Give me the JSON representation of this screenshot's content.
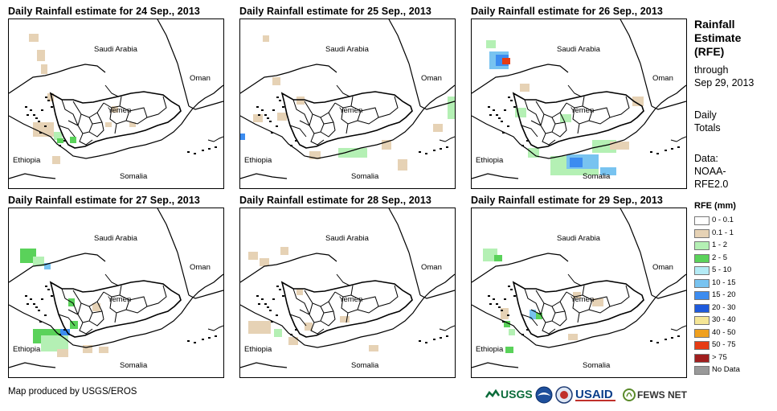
{
  "panels": [
    {
      "title": "Daily Rainfall estimate for 24 Sep., 2013"
    },
    {
      "title": "Daily Rainfall estimate for 25 Sep., 2013"
    },
    {
      "title": "Daily Rainfall estimate for 26 Sep., 2013"
    },
    {
      "title": "Daily Rainfall estimate for 27 Sep., 2013"
    },
    {
      "title": "Daily Rainfall estimate for 28 Sep., 2013"
    },
    {
      "title": "Daily Rainfall estimate for 29 Sep., 2013"
    }
  ],
  "places": {
    "saudi": "Saudi Arabia",
    "oman": "Oman",
    "yemen": "Yemen",
    "ethiopia": "Ethiopia",
    "somalia": "Somalia"
  },
  "sidebar": {
    "title_lines": [
      "Rainfall",
      "Estimate",
      "(RFE)"
    ],
    "through_label": "through",
    "through_date": "Sep 29, 2013",
    "period_lines": [
      "Daily",
      "Totals"
    ],
    "data_lines": [
      "Data:",
      "NOAA-",
      "RFE2.0"
    ]
  },
  "legend": {
    "title": "RFE (mm)",
    "items": [
      {
        "label": "0 - 0.1",
        "color": "#ffffff"
      },
      {
        "label": "0.1 - 1",
        "color": "#e6d2b5"
      },
      {
        "label": "1 - 2",
        "color": "#b4f0b4"
      },
      {
        "label": "2 - 5",
        "color": "#5ad25a"
      },
      {
        "label": "5 - 10",
        "color": "#b4ebf5"
      },
      {
        "label": "10 - 15",
        "color": "#78c3f0"
      },
      {
        "label": "15 - 20",
        "color": "#3c8cf0"
      },
      {
        "label": "20 - 30",
        "color": "#1e5adc"
      },
      {
        "label": "30 - 40",
        "color": "#f5e696"
      },
      {
        "label": "40 - 50",
        "color": "#f0a01e"
      },
      {
        "label": "50 - 75",
        "color": "#e63c14"
      },
      {
        "label": "> 75",
        "color": "#a01e1e"
      },
      {
        "label": "No Data",
        "color": "#999999"
      }
    ]
  },
  "footer": {
    "credit": "Map produced by USGS/EROS",
    "logos": [
      "USGS",
      "NOAA",
      "USAID",
      "FEWS NET"
    ]
  }
}
